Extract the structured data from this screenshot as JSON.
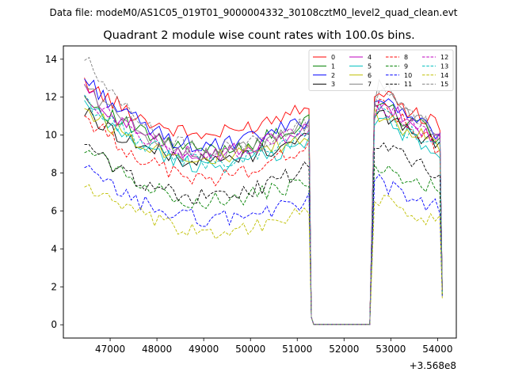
{
  "chart_data": {
    "type": "line",
    "suptitle": "Data file: modeM0/AS1C05_019T01_9000004332_30108cztM0_level2_quad_clean.evt",
    "title": "Quadrant 2 module wise count rates with 100.0s bins.",
    "xlabel": "",
    "ylabel": "",
    "x_offset_label": "+3.568e8",
    "xlim": [
      46000,
      54400
    ],
    "ylim": [
      -0.7,
      14.7
    ],
    "xticks": [
      47000,
      48000,
      49000,
      50000,
      51000,
      52000,
      53000,
      54000
    ],
    "yticks": [
      0,
      2,
      4,
      6,
      8,
      10,
      12,
      14
    ],
    "xtick_labels": [
      "47000",
      "48000",
      "49000",
      "50000",
      "51000",
      "52000",
      "53000",
      "54000"
    ],
    "ytick_labels": [
      "0",
      "2",
      "4",
      "6",
      "8",
      "10",
      "12",
      "14"
    ],
    "legend_position": "top-right",
    "legend_columns": 4,
    "time_profile": {
      "x_start": 46450,
      "bin_width": 100,
      "segment1_end": 51250,
      "gap_start": 51350,
      "gap_end": 52550,
      "segment2_start": 52650,
      "segment2_end": 54050
    },
    "series": [
      {
        "name": "0",
        "color": "#ff0000",
        "dash": "solid",
        "start": 12.8,
        "min": 10.0,
        "end_seg1": 11.8,
        "seg2_peak": 12.5,
        "seg2_end": 10.4,
        "final": 1.9
      },
      {
        "name": "1",
        "color": "#008000",
        "dash": "solid",
        "start": 12.0,
        "min": 9.2,
        "end_seg1": 10.7,
        "seg2_peak": 11.8,
        "seg2_end": 9.9,
        "final": 1.8
      },
      {
        "name": "2",
        "color": "#0000ff",
        "dash": "solid",
        "start": 13.0,
        "min": 9.4,
        "end_seg1": 10.9,
        "seg2_peak": 12.2,
        "seg2_end": 10.0,
        "final": 1.9
      },
      {
        "name": "3",
        "color": "#000000",
        "dash": "solid",
        "start": 11.2,
        "min": 8.6,
        "end_seg1": 10.0,
        "seg2_peak": 11.2,
        "seg2_end": 9.4,
        "final": 1.8
      },
      {
        "name": "4",
        "color": "#bf00bf",
        "dash": "solid",
        "start": 12.4,
        "min": 9.0,
        "end_seg1": 10.4,
        "seg2_peak": 11.9,
        "seg2_end": 9.8,
        "final": 1.8
      },
      {
        "name": "5",
        "color": "#00bfbf",
        "dash": "solid",
        "start": 11.6,
        "min": 8.4,
        "end_seg1": 9.6,
        "seg2_peak": 11.0,
        "seg2_end": 9.2,
        "final": 1.7
      },
      {
        "name": "6",
        "color": "#bfbf00",
        "dash": "solid",
        "start": 11.4,
        "min": 8.8,
        "end_seg1": 9.8,
        "seg2_peak": 11.3,
        "seg2_end": 9.4,
        "final": 1.7
      },
      {
        "name": "7",
        "color": "#808080",
        "dash": "solid",
        "start": 12.6,
        "min": 9.0,
        "end_seg1": 10.5,
        "seg2_peak": 13.0,
        "seg2_end": 9.9,
        "final": 1.8
      },
      {
        "name": "8",
        "color": "#ff0000",
        "dash": "dashed",
        "start": 11.0,
        "min": 7.7,
        "end_seg1": 9.6,
        "seg2_peak": 12.0,
        "seg2_end": 9.3,
        "final": 1.7
      },
      {
        "name": "9",
        "color": "#008000",
        "dash": "dashed",
        "start": 9.5,
        "min": 6.5,
        "end_seg1": 7.6,
        "seg2_peak": 8.6,
        "seg2_end": 7.1,
        "final": 1.5
      },
      {
        "name": "10",
        "color": "#0000ff",
        "dash": "dashed",
        "start": 8.2,
        "min": 5.6,
        "end_seg1": 6.5,
        "seg2_peak": 7.6,
        "seg2_end": 6.2,
        "final": 1.5
      },
      {
        "name": "11",
        "color": "#000000",
        "dash": "dashed",
        "start": 9.4,
        "min": 6.7,
        "end_seg1": 8.3,
        "seg2_peak": 9.6,
        "seg2_end": 8.0,
        "final": 1.6
      },
      {
        "name": "12",
        "color": "#bf00bf",
        "dash": "dashed",
        "start": 12.2,
        "min": 8.9,
        "end_seg1": 10.3,
        "seg2_peak": 11.6,
        "seg2_end": 9.7,
        "final": 1.8
      },
      {
        "name": "13",
        "color": "#00bfbf",
        "dash": "dashed",
        "start": 11.8,
        "min": 8.6,
        "end_seg1": 10.0,
        "seg2_peak": 11.4,
        "seg2_end": 9.3,
        "final": 1.7
      },
      {
        "name": "14",
        "color": "#bfbf00",
        "dash": "dashed",
        "start": 7.4,
        "min": 4.9,
        "end_seg1": 5.9,
        "seg2_peak": 6.7,
        "seg2_end": 5.4,
        "final": 1.4
      },
      {
        "name": "15",
        "color": "#808080",
        "dash": "dashed",
        "start": 14.0,
        "min": 9.2,
        "end_seg1": 10.6,
        "seg2_peak": 12.6,
        "seg2_end": 10.1,
        "final": 1.8
      }
    ]
  }
}
